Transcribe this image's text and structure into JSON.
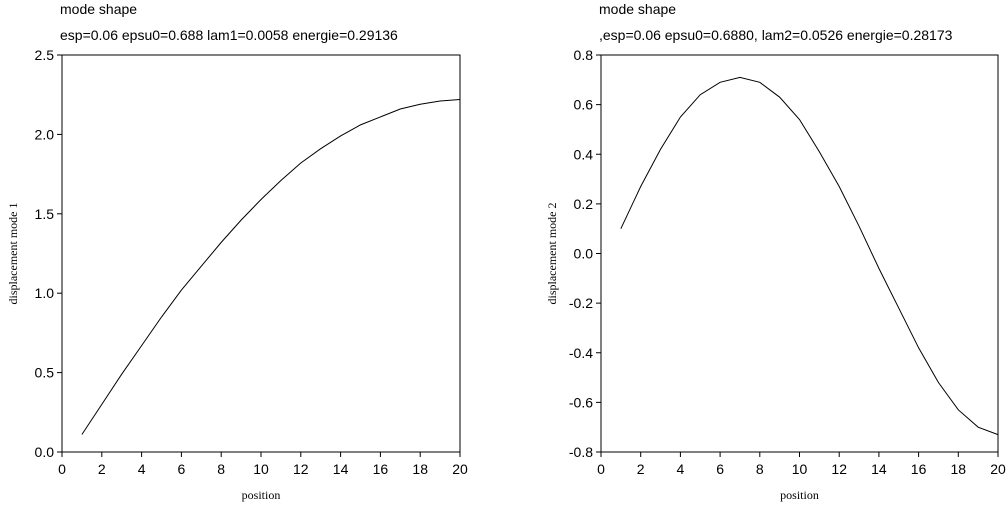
{
  "chart_data": [
    {
      "type": "line",
      "title": "mode shape",
      "subtitle": "esp=0.06 epsu0=0.688 lam1=0.0058 energie=0.29136",
      "x_label": "position",
      "y_label": "displacement mode 1",
      "x": [
        1,
        2,
        3,
        4,
        5,
        6,
        7,
        8,
        9,
        10,
        11,
        12,
        13,
        14,
        15,
        16,
        17,
        18,
        19,
        20
      ],
      "series": [
        {
          "color": "#000000",
          "values": [
            0.11,
            0.3,
            0.49,
            0.67,
            0.85,
            1.02,
            1.17,
            1.32,
            1.46,
            1.59,
            1.71,
            1.82,
            1.91,
            1.99,
            2.06,
            2.11,
            2.16,
            2.19,
            2.21,
            2.22
          ]
        }
      ],
      "xlim": [
        0,
        20
      ],
      "xticks": [
        0,
        2,
        4,
        6,
        8,
        10,
        12,
        14,
        16,
        18,
        20
      ],
      "ylim": [
        0,
        2.5
      ],
      "yticks": [
        {
          "value": 0,
          "label": "0.0"
        },
        0.5,
        {
          "value": 1,
          "label": "1.0"
        },
        1.5,
        {
          "value": 2,
          "label": "2.0"
        },
        2.5
      ]
    },
    {
      "type": "line",
      "title": "mode shape",
      "subtitle": ",esp=0.06 epsu0=0.6880, lam2=0.0526 energie=0.28173",
      "x_label": "position",
      "y_label": "displacement mode 2",
      "x": [
        1,
        2,
        3,
        4,
        5,
        6,
        7,
        8,
        9,
        10,
        11,
        12,
        13,
        14,
        15,
        16,
        17,
        18,
        19,
        20
      ],
      "series": [
        {
          "color": "#000000",
          "values": [
            0.1,
            0.27,
            0.42,
            0.55,
            0.64,
            0.69,
            0.71,
            0.69,
            0.63,
            0.54,
            0.41,
            0.27,
            0.11,
            -0.06,
            -0.22,
            -0.38,
            -0.52,
            -0.63,
            -0.7,
            -0.73
          ]
        }
      ],
      "xlim": [
        0,
        20
      ],
      "xticks": [
        0,
        2,
        4,
        6,
        8,
        10,
        12,
        14,
        16,
        18,
        20
      ],
      "ylim": [
        -0.8,
        0.8
      ],
      "yticks": [
        -0.8,
        -0.6,
        -0.4,
        -0.2,
        {
          "value": 0,
          "label": "0.0"
        },
        0.2,
        0.4,
        0.6,
        0.8
      ]
    }
  ]
}
